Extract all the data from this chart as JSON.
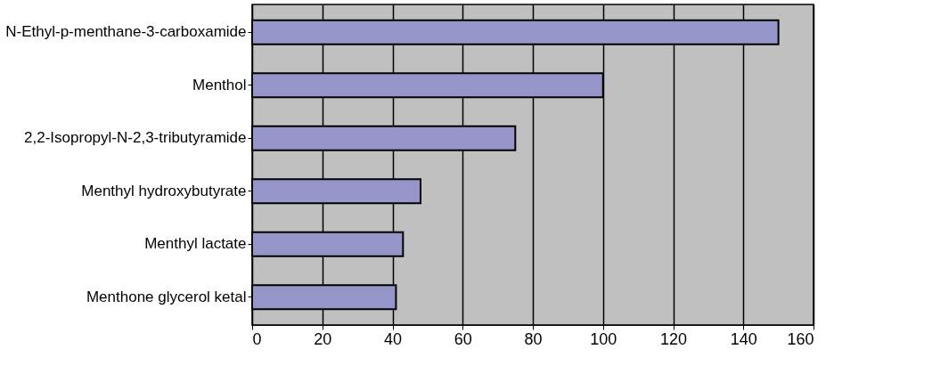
{
  "chart_data": {
    "type": "bar",
    "orientation": "horizontal",
    "categories": [
      "N-Ethyl-p-menthane-3-carboxamide",
      "Menthol",
      "2,2-Isopropyl-N-2,3-tributyramide",
      "Menthyl hydroxybutyrate",
      "Menthyl lactate",
      "Menthone glycerol ketal"
    ],
    "values": [
      150,
      100,
      75,
      48,
      43,
      41
    ],
    "color": "#9595c9",
    "xlim": [
      0,
      160
    ],
    "xticks": [
      0,
      20,
      40,
      60,
      80,
      100,
      120,
      140,
      160
    ],
    "grid": "x"
  }
}
